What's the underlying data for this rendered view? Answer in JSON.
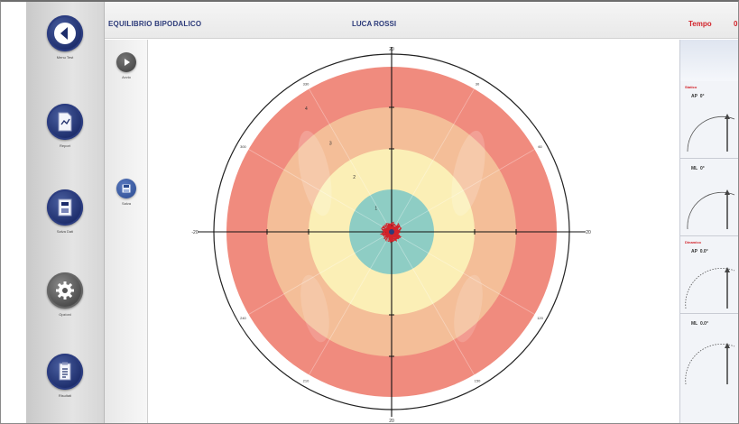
{
  "header": {
    "title": "EQUILIBRIO BIPODALICO",
    "patient_name": "LUCA ROSSI",
    "right_label": "Tempo",
    "right_label_2": "0"
  },
  "nav": {
    "items": [
      {
        "label": "Menu Test",
        "icon": "arrow-left-icon"
      },
      {
        "label": "Report",
        "icon": "report-icon"
      },
      {
        "label": "Salva Dati",
        "icon": "save-data-icon"
      },
      {
        "label": "Opzioni",
        "icon": "gear-icon"
      },
      {
        "label": "Risultati",
        "icon": "clipboard-icon"
      }
    ]
  },
  "subnav": {
    "items": [
      {
        "label": "Avvio",
        "icon": "play-icon"
      },
      {
        "label": "Salva",
        "icon": "disk-icon"
      }
    ]
  },
  "colors": {
    "ring_outer": "#f08b7e",
    "ring_mid": "#f4be98",
    "ring_inner": "#fbefb6",
    "ring_core": "#8ecdc4",
    "trace": "#d2232a",
    "header_text": "#2d3b7a",
    "accent_red": "#d2232a"
  },
  "chart_data": {
    "type": "polar-target",
    "axis_labels": {
      "top": "20",
      "bottom": "20",
      "left": "-20",
      "right": "20"
    },
    "ring_labels": [
      "4",
      "3",
      "2",
      "1"
    ],
    "angle_labels": [
      "30",
      "60",
      "120",
      "150",
      "210",
      "240",
      "300",
      "330"
    ]
  },
  "right_panel": {
    "caption_1": "Statico",
    "caption_2": "Dinamico",
    "gauges": [
      {
        "left": "AP",
        "right": "0°"
      },
      {
        "left": "ML",
        "right": "0°"
      },
      {
        "left": "AP",
        "right": "0.0°"
      },
      {
        "left": "ML",
        "right": "0.0°"
      }
    ]
  }
}
